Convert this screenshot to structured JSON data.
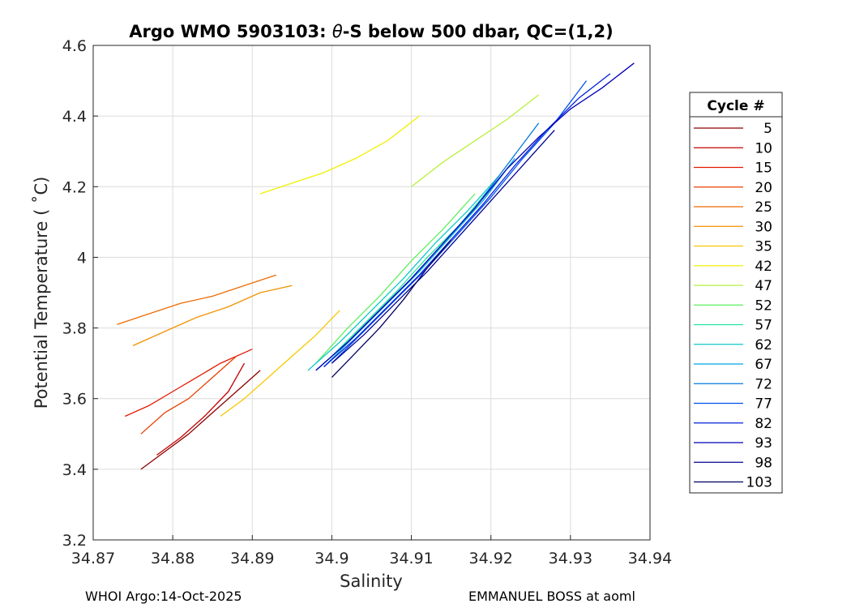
{
  "figure": {
    "footer_left": "WHOI Argo:14-Oct-2025",
    "footer_right": "EMMANUEL BOSS at aoml"
  },
  "chart_data": {
    "type": "line",
    "title_parts": [
      "Argo WMO 5903103: ",
      "θ",
      "-S below 500 dbar,  QC=(1,2)"
    ],
    "xlabel": "Salinity",
    "ylabel": "Potential Temperature ( ˚C)",
    "xlim": [
      34.87,
      34.94
    ],
    "ylim": [
      3.2,
      4.6
    ],
    "xticks": [
      34.87,
      34.88,
      34.89,
      34.9,
      34.91,
      34.92,
      34.93,
      34.94
    ],
    "yticks": [
      3.2,
      3.4,
      3.6,
      3.8,
      4,
      4.2,
      4.4,
      4.6
    ],
    "xtick_labels": [
      "34.87",
      "34.88",
      "34.89",
      "34.9",
      "34.91",
      "34.92",
      "34.93",
      "34.94"
    ],
    "ytick_labels": [
      "3.2",
      "3.4",
      "3.6",
      "3.8",
      "4",
      "4.2",
      "4.4",
      "4.6"
    ],
    "grid": true,
    "legend": {
      "title": "Cycle #",
      "position": "right, outside plot",
      "entries": [
        {
          "label": "5",
          "color": "#8b0000"
        },
        {
          "label": "10",
          "color": "#c40000"
        },
        {
          "label": "15",
          "color": "#e11a00"
        },
        {
          "label": "20",
          "color": "#e84000"
        },
        {
          "label": "25",
          "color": "#ee6a00"
        },
        {
          "label": "30",
          "color": "#f29200"
        },
        {
          "label": "35",
          "color": "#f8c800"
        },
        {
          "label": "42",
          "color": "#f0f000"
        },
        {
          "label": "47",
          "color": "#b8f03c"
        },
        {
          "label": "52",
          "color": "#5cf05c"
        },
        {
          "label": "57",
          "color": "#20e6a0"
        },
        {
          "label": "62",
          "color": "#10c8c8"
        },
        {
          "label": "67",
          "color": "#00a8e0"
        },
        {
          "label": "72",
          "color": "#0078e0"
        },
        {
          "label": "77",
          "color": "#0050f0"
        },
        {
          "label": "82",
          "color": "#0020d8"
        },
        {
          "label": "93",
          "color": "#0000b8"
        },
        {
          "label": "98",
          "color": "#000090"
        },
        {
          "label": "103",
          "color": "#000060"
        }
      ]
    },
    "series": [
      {
        "cycle": "5",
        "color": "#8b0000",
        "x": [
          34.876,
          34.879,
          34.882,
          34.885,
          34.888,
          34.891
        ],
        "y": [
          3.4,
          3.45,
          3.5,
          3.56,
          3.62,
          3.68
        ]
      },
      {
        "cycle": "10",
        "color": "#c40000",
        "x": [
          34.878,
          34.881,
          34.884,
          34.887,
          34.889
        ],
        "y": [
          3.44,
          3.49,
          3.55,
          3.62,
          3.7
        ]
      },
      {
        "cycle": "15",
        "color": "#e11a00",
        "x": [
          34.874,
          34.877,
          34.88,
          34.883,
          34.886,
          34.89
        ],
        "y": [
          3.55,
          3.58,
          3.62,
          3.66,
          3.7,
          3.74
        ]
      },
      {
        "cycle": "20",
        "color": "#e84000",
        "x": [
          34.876,
          34.879,
          34.882,
          34.885,
          34.888
        ],
        "y": [
          3.5,
          3.56,
          3.6,
          3.66,
          3.72
        ]
      },
      {
        "cycle": "25",
        "color": "#ee6a00",
        "x": [
          34.873,
          34.877,
          34.881,
          34.885,
          34.889,
          34.893
        ],
        "y": [
          3.81,
          3.84,
          3.87,
          3.89,
          3.92,
          3.95
        ]
      },
      {
        "cycle": "30",
        "color": "#f29200",
        "x": [
          34.875,
          34.879,
          34.883,
          34.887,
          34.891,
          34.895
        ],
        "y": [
          3.75,
          3.79,
          3.83,
          3.86,
          3.9,
          3.92
        ]
      },
      {
        "cycle": "35",
        "color": "#f8c800",
        "x": [
          34.886,
          34.889,
          34.892,
          34.895,
          34.898,
          34.901
        ],
        "y": [
          3.55,
          3.6,
          3.66,
          3.72,
          3.78,
          3.85
        ]
      },
      {
        "cycle": "42",
        "color": "#f0f000",
        "x": [
          34.891,
          34.895,
          34.899,
          34.903,
          34.907,
          34.911
        ],
        "y": [
          4.18,
          4.21,
          4.24,
          4.28,
          4.33,
          4.4
        ]
      },
      {
        "cycle": "47",
        "color": "#b8f03c",
        "x": [
          34.91,
          34.914,
          34.918,
          34.922,
          34.926
        ],
        "y": [
          4.2,
          4.27,
          4.33,
          4.39,
          4.46
        ]
      },
      {
        "cycle": "52",
        "color": "#5cf05c",
        "x": [
          34.898,
          34.902,
          34.906,
          34.91,
          34.914,
          34.918
        ],
        "y": [
          3.7,
          3.8,
          3.89,
          3.99,
          4.08,
          4.18
        ]
      },
      {
        "cycle": "57",
        "color": "#20e6a0",
        "x": [
          34.9,
          34.904,
          34.908,
          34.912,
          34.916,
          34.92
        ],
        "y": [
          3.72,
          3.81,
          3.9,
          4.0,
          4.09,
          4.2
        ]
      },
      {
        "cycle": "62",
        "color": "#10c8c8",
        "x": [
          34.897,
          34.901,
          34.905,
          34.909,
          34.913,
          34.917,
          34.921
        ],
        "y": [
          3.68,
          3.76,
          3.85,
          3.94,
          4.04,
          4.13,
          4.23
        ]
      },
      {
        "cycle": "67",
        "color": "#00a8e0",
        "x": [
          34.899,
          34.903,
          34.907,
          34.911,
          34.915,
          34.919,
          34.923
        ],
        "y": [
          3.69,
          3.78,
          3.87,
          3.96,
          4.06,
          4.16,
          4.28
        ]
      },
      {
        "cycle": "72",
        "color": "#0078e0",
        "x": [
          34.898,
          34.902,
          34.906,
          34.91,
          34.914,
          34.918,
          34.922,
          34.926
        ],
        "y": [
          3.68,
          3.76,
          3.85,
          3.94,
          4.04,
          4.14,
          4.26,
          4.38
        ]
      },
      {
        "cycle": "77",
        "color": "#0050f0",
        "x": [
          34.9,
          34.904,
          34.908,
          34.912,
          34.916,
          34.92,
          34.924,
          34.928,
          34.932
        ],
        "y": [
          3.7,
          3.79,
          3.88,
          3.97,
          4.07,
          4.17,
          4.28,
          4.38,
          4.5
        ]
      },
      {
        "cycle": "82",
        "color": "#0020d8",
        "x": [
          34.899,
          34.903,
          34.907,
          34.911,
          34.915,
          34.919,
          34.923,
          34.927,
          34.931,
          34.935
        ],
        "y": [
          3.69,
          3.77,
          3.86,
          3.95,
          4.05,
          4.15,
          4.26,
          4.36,
          4.45,
          4.52
        ]
      },
      {
        "cycle": "93",
        "color": "#0000b8",
        "x": [
          34.898,
          34.902,
          34.906,
          34.91,
          34.914,
          34.918,
          34.922,
          34.926,
          34.93,
          34.934,
          34.938
        ],
        "y": [
          3.68,
          3.76,
          3.85,
          3.94,
          4.04,
          4.14,
          4.25,
          4.34,
          4.42,
          4.48,
          4.55
        ]
      },
      {
        "cycle": "98",
        "color": "#000090",
        "x": [
          34.9,
          34.904,
          34.908,
          34.912,
          34.916,
          34.92,
          34.924,
          34.928
        ],
        "y": [
          3.7,
          3.78,
          3.87,
          3.96,
          4.06,
          4.16,
          4.26,
          4.36
        ]
      },
      {
        "cycle": "103",
        "color": "#000060",
        "x": [
          34.9,
          34.903,
          34.906,
          34.909,
          34.912,
          34.915
        ],
        "y": [
          3.66,
          3.73,
          3.8,
          3.88,
          3.97,
          4.05
        ]
      }
    ]
  }
}
